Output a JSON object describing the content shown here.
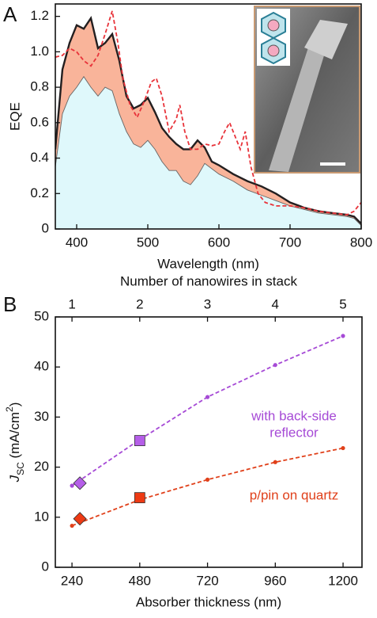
{
  "chart_data": [
    {
      "type": "area",
      "label": "A",
      "xlabel": "Wavelength (nm)",
      "ylabel": "EQE",
      "xlim": [
        370,
        800
      ],
      "xticks": [
        400,
        500,
        600,
        700,
        800
      ],
      "ylim": [
        0,
        1.27
      ],
      "yticks": [
        0,
        0.2,
        0.4,
        0.6,
        0.8,
        {
          "value": 1,
          "label": "1.0"
        },
        1.2
      ],
      "series": [
        {
          "color": "#666666",
          "fill": "#dff8fb",
          "x": [
            370,
            380,
            390,
            400,
            410,
            420,
            430,
            440,
            450,
            460,
            470,
            480,
            490,
            500,
            510,
            520,
            530,
            540,
            550,
            560,
            570,
            580,
            590,
            600,
            620,
            640,
            660,
            680,
            700,
            720,
            740,
            760,
            780,
            790,
            800
          ],
          "values": [
            0.35,
            0.65,
            0.75,
            0.8,
            0.86,
            0.8,
            0.75,
            0.8,
            0.78,
            0.65,
            0.55,
            0.48,
            0.46,
            0.5,
            0.45,
            0.38,
            0.33,
            0.33,
            0.27,
            0.25,
            0.3,
            0.37,
            0.34,
            0.31,
            0.27,
            0.22,
            0.19,
            0.16,
            0.13,
            0.11,
            0.09,
            0.08,
            0.07,
            0.06,
            0.02
          ]
        },
        {
          "color": "#231f20",
          "fill": "#f9b49a",
          "x": [
            370,
            380,
            390,
            400,
            410,
            420,
            430,
            440,
            450,
            460,
            470,
            480,
            490,
            500,
            510,
            520,
            530,
            540,
            550,
            560,
            570,
            580,
            590,
            600,
            620,
            640,
            660,
            680,
            700,
            720,
            740,
            760,
            780,
            790,
            800
          ],
          "values": [
            0.45,
            0.9,
            1.05,
            1.15,
            1.13,
            1.19,
            1.02,
            1.05,
            1.1,
            0.95,
            0.75,
            0.68,
            0.7,
            0.74,
            0.66,
            0.57,
            0.52,
            0.48,
            0.45,
            0.45,
            0.5,
            0.46,
            0.38,
            0.36,
            0.31,
            0.27,
            0.24,
            0.2,
            0.15,
            0.12,
            0.1,
            0.09,
            0.08,
            0.07,
            0.03
          ]
        },
        {
          "color": "#e8333a",
          "dash": true,
          "x": [
            370,
            380,
            390,
            400,
            410,
            420,
            430,
            440,
            450,
            458,
            465,
            475,
            485,
            495,
            505,
            512,
            520,
            530,
            540,
            545,
            552,
            560,
            570,
            580,
            590,
            600,
            608,
            615,
            625,
            630,
            637,
            645,
            655,
            665,
            680,
            700,
            720,
            740,
            760,
            780,
            790,
            800
          ],
          "values": [
            0.97,
            0.98,
            1.02,
            1.0,
            0.95,
            0.92,
            0.98,
            1.1,
            1.23,
            1.05,
            0.85,
            0.7,
            0.63,
            0.72,
            0.83,
            0.85,
            0.75,
            0.55,
            0.62,
            0.7,
            0.55,
            0.45,
            0.45,
            0.48,
            0.47,
            0.48,
            0.55,
            0.6,
            0.5,
            0.45,
            0.55,
            0.35,
            0.2,
            0.15,
            0.13,
            0.13,
            0.12,
            0.1,
            0.09,
            0.08,
            0.1,
            0.15
          ]
        }
      ]
    },
    {
      "type": "line",
      "label": "B",
      "xlabel": "Absorber thickness (nm)",
      "x2label": "Number of nanowires in stack",
      "ylabel": [
        "J",
        "SC",
        " (mA/cm",
        "2",
        ")"
      ],
      "xlim": [
        181,
        1267
      ],
      "xticks": [
        240,
        480,
        720,
        960,
        1200
      ],
      "x2lim": [
        0.754,
        5.28
      ],
      "x2ticks": [
        1,
        2,
        3,
        4,
        5
      ],
      "ylim": [
        0,
        50
      ],
      "yticks": [
        0,
        10,
        20,
        30,
        40,
        50
      ],
      "series": [
        {
          "color": "#a64ad6",
          "axis": "x2",
          "dash": true,
          "x": [
            1,
            2,
            3,
            4,
            5
          ],
          "values": [
            16.3,
            25.5,
            34.0,
            40.4,
            46.2
          ]
        },
        {
          "color": "#e0401a",
          "axis": "x2",
          "dash": true,
          "x": [
            1,
            2,
            3,
            4,
            5
          ],
          "values": [
            8.3,
            13.5,
            17.5,
            21.0,
            23.8
          ]
        },
        {
          "color": "#b55ee8",
          "marker": "diamond",
          "x": [
            268
          ],
          "values": [
            16.8
          ]
        },
        {
          "color": "#b55ee8",
          "marker": "square",
          "x": [
            480
          ],
          "values": [
            25.3
          ]
        },
        {
          "color": "#ee3a14",
          "marker": "diamond",
          "x": [
            268
          ],
          "values": [
            9.7
          ]
        },
        {
          "color": "#ee3a14",
          "marker": "square",
          "x": [
            480
          ],
          "values": [
            13.9
          ]
        }
      ],
      "annotations": [
        {
          "color": "#a64ad6",
          "lines": [
            "with back-side",
            "reflector"
          ]
        },
        {
          "color": "#e0401a",
          "lines": [
            "p/pin on quartz"
          ]
        }
      ]
    }
  ]
}
